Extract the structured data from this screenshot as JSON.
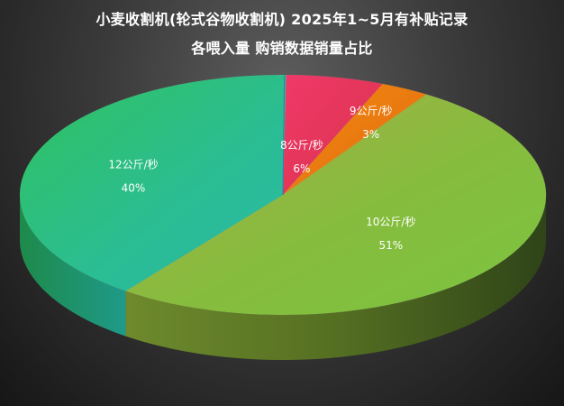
{
  "chart_data": {
    "type": "pie",
    "style": "3d",
    "title": "小麦收割机(轮式谷物收割机)  2025年1~5月有补贴记录",
    "subtitle": "各喂入量  购销数据销量占比",
    "categories": [
      "8公斤/秒",
      "9公斤/秒",
      "10公斤/秒",
      "12公斤/秒"
    ],
    "values": [
      6,
      3,
      51,
      40
    ],
    "value_labels": [
      "6%",
      "3%",
      "51%",
      "40%"
    ],
    "colors": [
      "#e8315a",
      "#f07d12",
      "#8cb83c",
      "#2bbd93"
    ],
    "legend": "none"
  }
}
